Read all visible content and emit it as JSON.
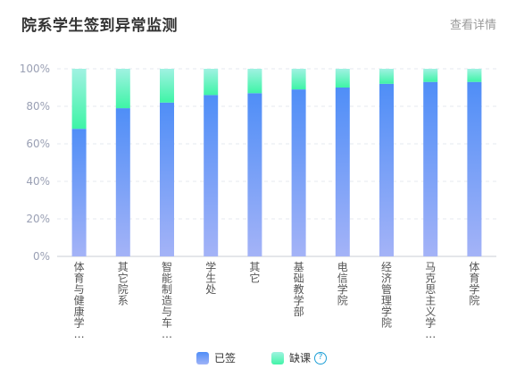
{
  "header": {
    "title": "院系学生签到异常监测",
    "details_label": "查看详情"
  },
  "legend": {
    "signed_label": "已签",
    "absent_label": "缺课",
    "help_icon": "question-circle-icon"
  },
  "colors": {
    "signed_top": "#4f8ef7",
    "signed_bottom": "#a4b3f7",
    "absent_top": "#a0f2e2",
    "absent_bottom": "#3ef4a6",
    "grid": "#e6e9ef",
    "axis_text": "#9aa0b4",
    "category_text": "#555555"
  },
  "chart_data": {
    "type": "bar",
    "stacked": true,
    "title": "院系学生签到异常监测",
    "categories": [
      "体育与健康学…",
      "其它院系",
      "智能制造与车…",
      "学生处",
      "其它",
      "基础教学部",
      "电信学院",
      "经济管理学院",
      "马克思主义学…",
      "体育学院"
    ],
    "series": [
      {
        "name": "已签",
        "values": [
          68,
          79,
          82,
          86,
          87,
          89,
          90,
          92,
          93,
          93
        ]
      },
      {
        "name": "缺课",
        "values": [
          32,
          21,
          18,
          14,
          13,
          11,
          10,
          8,
          7,
          7
        ]
      }
    ],
    "ylim": [
      0,
      100
    ],
    "yticks": [
      "0%",
      "20%",
      "40%",
      "60%",
      "80%",
      "100%"
    ],
    "grid": true,
    "legend_position": "bottom-center"
  }
}
